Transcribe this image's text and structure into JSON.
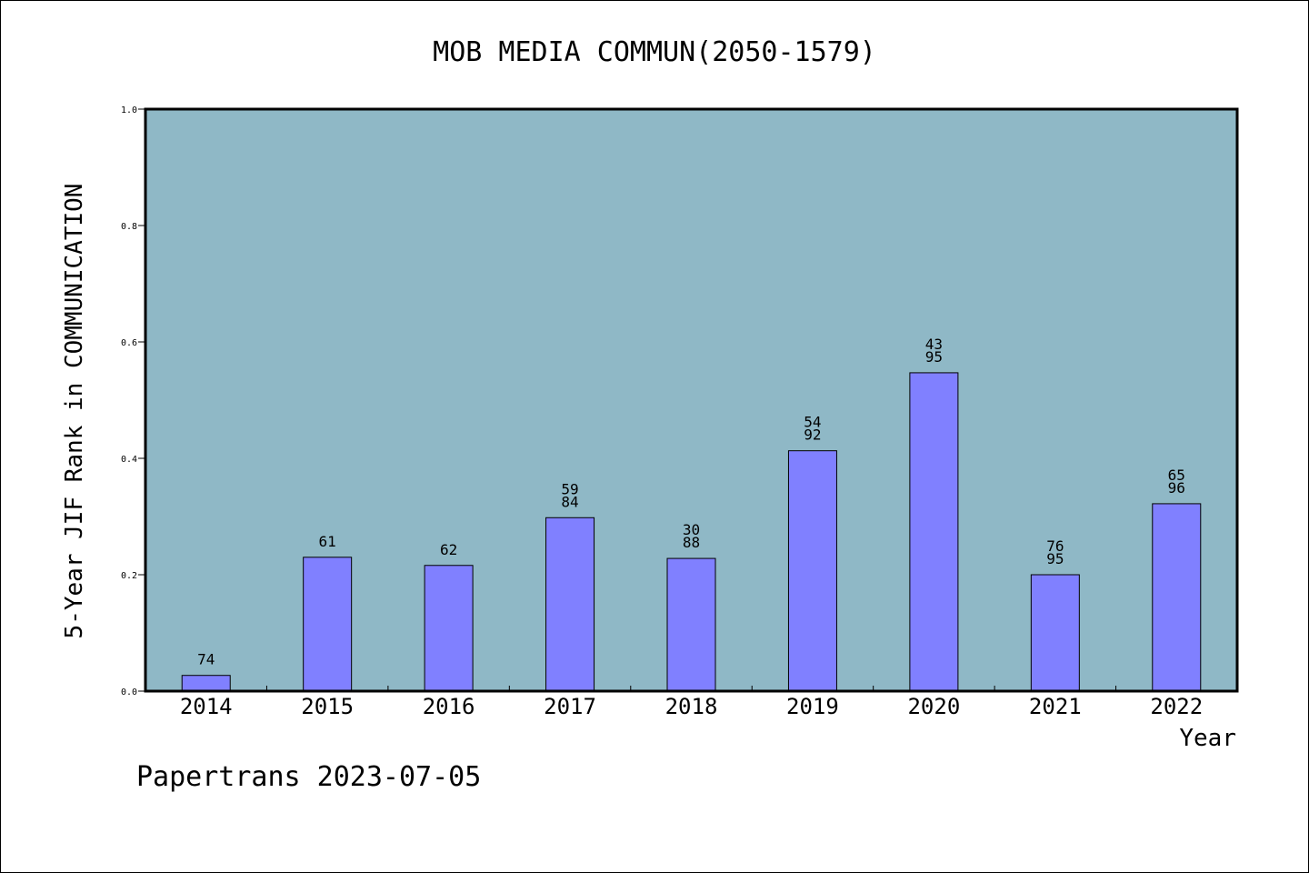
{
  "chart_data": {
    "type": "bar",
    "title": "MOB MEDIA COMMUN(2050-1579)",
    "xlabel": "Year",
    "ylabel": "5-Year JIF Rank in COMMUNICATION",
    "categories": [
      "2014",
      "2015",
      "2016",
      "2017",
      "2018",
      "2019",
      "2020",
      "2021",
      "2022"
    ],
    "values": [
      0.027,
      0.23,
      0.216,
      0.298,
      0.228,
      0.413,
      0.547,
      0.2,
      0.322
    ],
    "bar_labels": [
      [
        "74"
      ],
      [
        "61"
      ],
      [
        "62"
      ],
      [
        "59",
        "84"
      ],
      [
        "30",
        "88"
      ],
      [
        "54",
        "92"
      ],
      [
        "43",
        "95"
      ],
      [
        "76",
        "95"
      ],
      [
        "65",
        "96"
      ]
    ],
    "ylim": [
      0,
      1.0
    ],
    "yticks": [
      "0.0",
      "0.2",
      "0.4",
      "0.6",
      "0.8",
      "1.0"
    ],
    "grid": false,
    "colors": {
      "plot_background": "#8fb8c6",
      "bar_fill": "#8080ff",
      "bar_stroke": "#000000"
    }
  },
  "footer": {
    "text": "Papertrans 2023-07-05"
  }
}
